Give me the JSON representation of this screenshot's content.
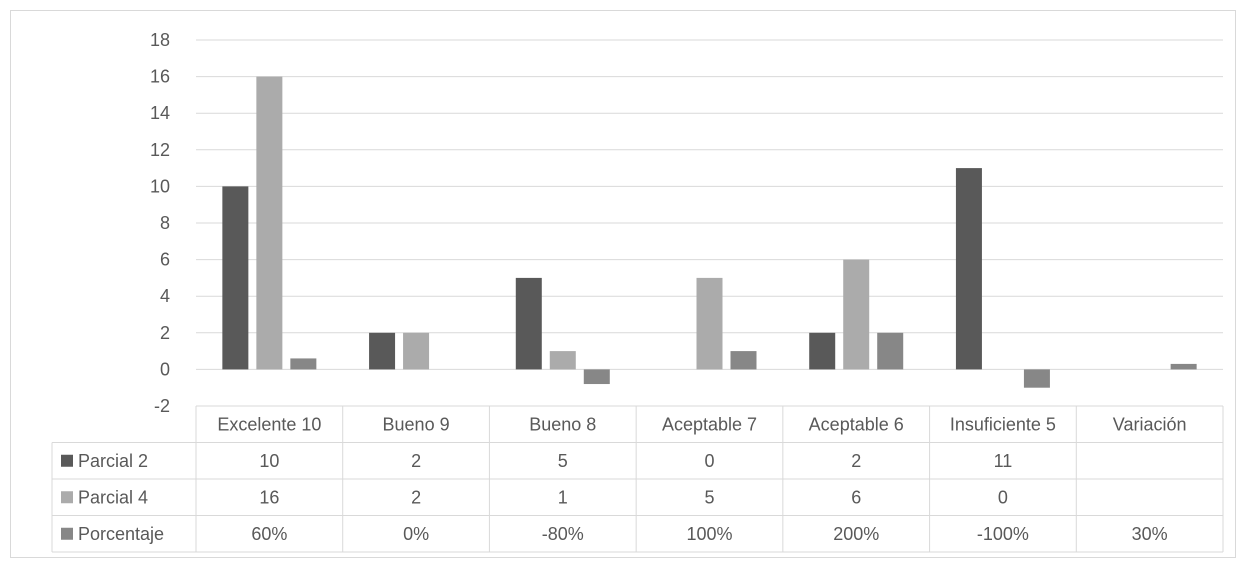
{
  "chart_data": {
    "type": "bar",
    "title": "",
    "xlabel": "",
    "ylabel": "",
    "ylim": [
      -2,
      18
    ],
    "yticks": [
      -2,
      0,
      2,
      4,
      6,
      8,
      10,
      12,
      14,
      16,
      18
    ],
    "grid": true,
    "legend": "data-table-left",
    "categories": [
      "Excelente 10",
      "Bueno 9",
      "Bueno 8",
      "Aceptable 7",
      "Aceptable 6",
      "Insuficiente 5",
      "Variación"
    ],
    "series": [
      {
        "name": "Parcial 2",
        "color": "#595959",
        "values": [
          10,
          2,
          5,
          0,
          2,
          11,
          null
        ],
        "labels": [
          "10",
          "2",
          "5",
          "0",
          "2",
          "11",
          ""
        ]
      },
      {
        "name": "Parcial 4",
        "color": "#ababab",
        "values": [
          16,
          2,
          1,
          5,
          6,
          0,
          null
        ],
        "labels": [
          "16",
          "2",
          "1",
          "5",
          "6",
          "0",
          ""
        ]
      },
      {
        "name": "Porcentaje",
        "color": "#878787",
        "values": [
          0.6,
          0,
          -0.8,
          1,
          2,
          -1,
          0.3
        ],
        "labels": [
          "60%",
          "0%",
          "-80%",
          "100%",
          "200%",
          "-100%",
          "30%"
        ]
      }
    ]
  }
}
